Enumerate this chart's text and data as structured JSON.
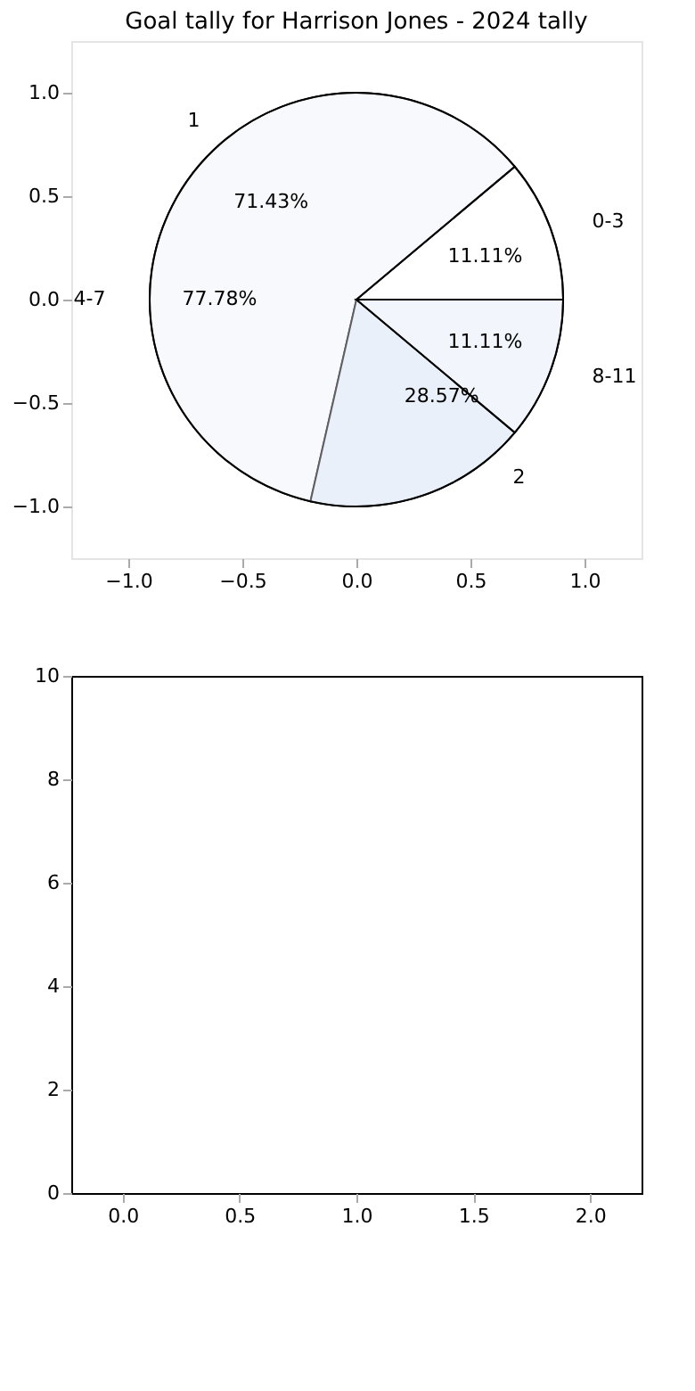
{
  "chart_data": [
    {
      "type": "scatter",
      "title": "Goal tally for Harrison Jones - 2024 tally",
      "grid": false,
      "xlim": [
        -1.25,
        1.25
      ],
      "ylim": [
        -1.25,
        1.25
      ],
      "xticks": [
        {
          "value": -1.0,
          "label": "−1.0"
        },
        {
          "value": -0.5,
          "label": "−0.5"
        },
        {
          "value": 0.0,
          "label": "0.0"
        },
        {
          "value": 0.5,
          "label": "0.5"
        },
        {
          "value": 1.0,
          "label": "1.0"
        }
      ],
      "yticks": [
        {
          "value": -1.0,
          "label": "−1.0"
        },
        {
          "value": -0.5,
          "label": "−0.5"
        },
        {
          "value": 0.0,
          "label": "0.0"
        },
        {
          "value": 0.5,
          "label": "0.5"
        },
        {
          "value": 1.0,
          "label": "1.0"
        }
      ]
    },
    {
      "type": "pie",
      "categories": [
        "1",
        "2"
      ],
      "values": [
        71.43,
        28.57
      ],
      "colors": [
        "#ffffff",
        "#eaf0fb"
      ],
      "value_labels": [
        "71.43%",
        "28.57%"
      ]
    },
    {
      "type": "pie",
      "categories": [
        "0-3",
        "4-7",
        "8-11"
      ],
      "values": [
        11.11,
        77.78,
        11.11
      ],
      "colors": [
        "#ffffff",
        "#ffffff",
        "#ffffff"
      ],
      "value_labels": [
        "11.11%",
        "77.78%",
        "11.11%"
      ]
    },
    {
      "type": "scatter",
      "grid": false,
      "xlim": [
        -0.22,
        2.22
      ],
      "ylim": [
        0,
        10
      ],
      "xticks": [
        {
          "value": 0.0,
          "label": "0.0"
        },
        {
          "value": 0.5,
          "label": "0.5"
        },
        {
          "value": 1.0,
          "label": "1.0"
        },
        {
          "value": 1.5,
          "label": "1.5"
        },
        {
          "value": 2.0,
          "label": "2.0"
        }
      ],
      "yticks": [
        0,
        2,
        4,
        6,
        8,
        10
      ]
    }
  ]
}
